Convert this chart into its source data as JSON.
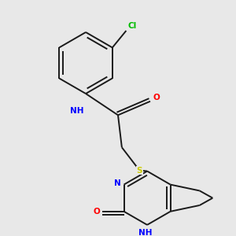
{
  "background_color": "#e8e8e8",
  "bond_color": "#1a1a1a",
  "atom_colors": {
    "N": "#0000ff",
    "O": "#ff0000",
    "S": "#cccc00",
    "Cl": "#00bb00",
    "H": "#000000",
    "C": "#1a1a1a"
  },
  "figsize": [
    3.0,
    3.0
  ],
  "dpi": 100,
  "lw": 1.4,
  "fs": 7.5
}
